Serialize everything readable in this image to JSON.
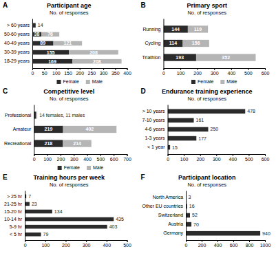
{
  "chart_data": [
    {
      "type": "bar",
      "orientation": "horizontal",
      "stacked": true,
      "data_labels": true,
      "legend": "bottom",
      "title": "Participant age",
      "subtitle": "No. of responses",
      "annotations": [
        {
          "text": "A"
        }
      ],
      "categories": [
        "> 60 years",
        "50-60 years",
        "40-49 years",
        "30-39 years",
        "18-29 years"
      ],
      "series": [
        {
          "name": "Female",
          "color": "#2b2b2b",
          "values": [
            14,
            38,
            89,
            155,
            169
          ]
        },
        {
          "name": "Male",
          "color": "#b5b5b5",
          "values": [
            0,
            76,
            121,
            208,
            208
          ],
          "value_labels": [
            null,
            "76",
            "121",
            "208",
            "208"
          ]
        }
      ],
      "xlim": [
        0,
        400
      ],
      "xticks": [
        0,
        50,
        100,
        150,
        200,
        250,
        300,
        350,
        400
      ]
    },
    {
      "type": "bar",
      "orientation": "horizontal",
      "stacked": true,
      "data_labels": true,
      "legend": "bottom",
      "title": "Primary sport",
      "subtitle": "No. of responses",
      "annotations": [
        {
          "text": "B"
        }
      ],
      "categories": [
        "Running",
        "Cycling",
        "Triathlon"
      ],
      "series": [
        {
          "name": "Female",
          "color": "#2b2b2b",
          "values": [
            144,
            114,
            193
          ]
        },
        {
          "name": "Male",
          "color": "#b5b5b5",
          "values": [
            119,
            156,
            352
          ]
        }
      ],
      "xlim": [
        0,
        600
      ],
      "xticks": [
        0,
        100,
        200,
        300,
        400,
        500,
        600
      ]
    },
    {
      "type": "bar",
      "orientation": "horizontal",
      "stacked": true,
      "data_labels": true,
      "legend": "bottom",
      "title": "Competitive level",
      "subtitle": "No. of responses",
      "annotations": [
        {
          "text": "C"
        },
        {
          "text": "14 females, 11 males",
          "category": "Professional"
        }
      ],
      "categories": [
        "Professional",
        "Amateur",
        "Recreational"
      ],
      "series": [
        {
          "name": "Female",
          "color": "#2b2b2b",
          "values": [
            14,
            219,
            218
          ],
          "value_labels": [
            null,
            "219",
            "218"
          ]
        },
        {
          "name": "Male",
          "color": "#b5b5b5",
          "values": [
            11,
            402,
            214
          ],
          "value_labels": [
            null,
            "402",
            "214"
          ]
        }
      ],
      "xlim": [
        0,
        700
      ],
      "xticks": [
        0,
        100,
        200,
        300,
        400,
        500,
        600,
        700
      ]
    },
    {
      "type": "bar",
      "orientation": "horizontal",
      "data_labels": true,
      "title": "Endurance training experience",
      "subtitle": "No. of responses",
      "annotations": [
        {
          "text": "D"
        }
      ],
      "categories": [
        "> 10 years",
        "7-10 years",
        "4-6 years",
        "1-3 years",
        "< 1 year"
      ],
      "values": [
        478,
        161,
        250,
        177,
        15
      ],
      "color": "#2b2b2b",
      "xlim": [
        0,
        600
      ],
      "xticks": [
        0,
        100,
        200,
        300,
        400,
        500,
        600
      ]
    },
    {
      "type": "bar",
      "orientation": "horizontal",
      "data_labels": true,
      "title": "Training hours per week",
      "subtitle": "No. of responses",
      "annotations": [
        {
          "text": "E"
        }
      ],
      "categories": [
        "> 25 hr",
        "21-25 hr",
        "15-20 hr",
        "10-14 hr",
        "5-9 hr",
        "< 5 hr"
      ],
      "values": [
        7,
        23,
        134,
        435,
        403,
        79
      ],
      "color": "#2b2b2b",
      "xlim": [
        0,
        500
      ],
      "xticks": [
        0,
        100,
        200,
        300,
        400,
        500
      ]
    },
    {
      "type": "bar",
      "orientation": "horizontal",
      "data_labels": true,
      "title": "Participant location",
      "subtitle": "No. of responses",
      "annotations": [
        {
          "text": "F"
        }
      ],
      "categories": [
        "North America",
        "Other EU countries",
        "Switzerland",
        "Austria",
        "Germany"
      ],
      "values": [
        3,
        16,
        52,
        70,
        940
      ],
      "color": "#2b2b2b",
      "xlim": [
        0,
        1000
      ],
      "xticks": [
        0,
        200,
        400,
        600,
        800,
        1000
      ]
    }
  ]
}
